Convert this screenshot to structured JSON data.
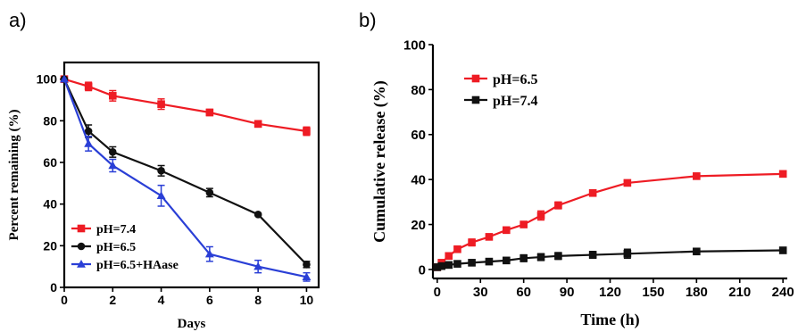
{
  "chart_data": [
    {
      "type": "line",
      "panel_label": "a)",
      "title": "",
      "xlabel": "Days",
      "ylabel": "Percent remaining (%)",
      "xlim": [
        0,
        10.5
      ],
      "ylim": [
        0,
        108
      ],
      "xticks": [
        0,
        2,
        4,
        6,
        8,
        10
      ],
      "yticks": [
        0,
        20,
        40,
        60,
        80,
        100
      ],
      "grid": false,
      "legend_position": "bottom-left",
      "series": [
        {
          "name": "pH=7.4",
          "color": "#ee1c24",
          "marker": "square",
          "x": [
            0,
            1,
            2,
            4,
            6,
            8,
            10
          ],
          "y": [
            100,
            96.5,
            92,
            88,
            84,
            78.5,
            75
          ],
          "err": [
            0,
            2,
            2.5,
            2.5,
            1.5,
            1.5,
            2
          ]
        },
        {
          "name": "pH=6.5",
          "color": "#111111",
          "marker": "circle",
          "x": [
            0,
            1,
            2,
            4,
            6,
            8,
            10
          ],
          "y": [
            100,
            75,
            65,
            56,
            45.5,
            35,
            11
          ],
          "err": [
            0,
            3,
            2.5,
            2.5,
            2,
            0.5,
            1.5
          ]
        },
        {
          "name": "pH=6.5+HAase",
          "color": "#2a3fd6",
          "marker": "triangle",
          "x": [
            0,
            1,
            2,
            4,
            6,
            8,
            10
          ],
          "y": [
            100,
            69,
            58.5,
            44,
            16,
            10,
            5
          ],
          "err": [
            0,
            3.5,
            3,
            5,
            3.5,
            3,
            2
          ]
        }
      ]
    },
    {
      "type": "line",
      "panel_label": "b)",
      "title": "",
      "xlabel": "Time (h)",
      "ylabel": "Cumulative release (%)",
      "xlim": [
        -3,
        243
      ],
      "ylim": [
        -4,
        100
      ],
      "xticks": [
        0,
        30,
        60,
        90,
        120,
        150,
        180,
        210,
        240
      ],
      "yticks": [
        0,
        20,
        40,
        60,
        80,
        100
      ],
      "grid": false,
      "legend_position": "top-left",
      "series": [
        {
          "name": "pH=6.5",
          "color": "#ee1c24",
          "marker": "square",
          "x": [
            0,
            3,
            8,
            14,
            24,
            36,
            48,
            60,
            72,
            84,
            108,
            132,
            180,
            240
          ],
          "y": [
            1,
            3,
            6,
            9,
            12,
            14.5,
            17.5,
            20,
            24,
            28.5,
            34,
            38.5,
            41.5,
            42.5
          ],
          "err": [
            0.5,
            0.5,
            0.8,
            1,
            1.5,
            1,
            1,
            1,
            2,
            1.5,
            1,
            0.8,
            1,
            1
          ]
        },
        {
          "name": "pH=7.4",
          "color": "#111111",
          "marker": "square",
          "x": [
            0,
            3,
            8,
            14,
            24,
            36,
            48,
            60,
            72,
            84,
            108,
            132,
            180,
            240
          ],
          "y": [
            1,
            1.5,
            2,
            2.5,
            3,
            3.5,
            4,
            5,
            5.5,
            6,
            6.5,
            7,
            8,
            8.5
          ],
          "err": [
            0.3,
            0.3,
            0.5,
            0.5,
            1,
            1,
            1,
            1.5,
            1.5,
            1.5,
            1.5,
            2,
            1,
            0.8
          ]
        }
      ]
    }
  ]
}
